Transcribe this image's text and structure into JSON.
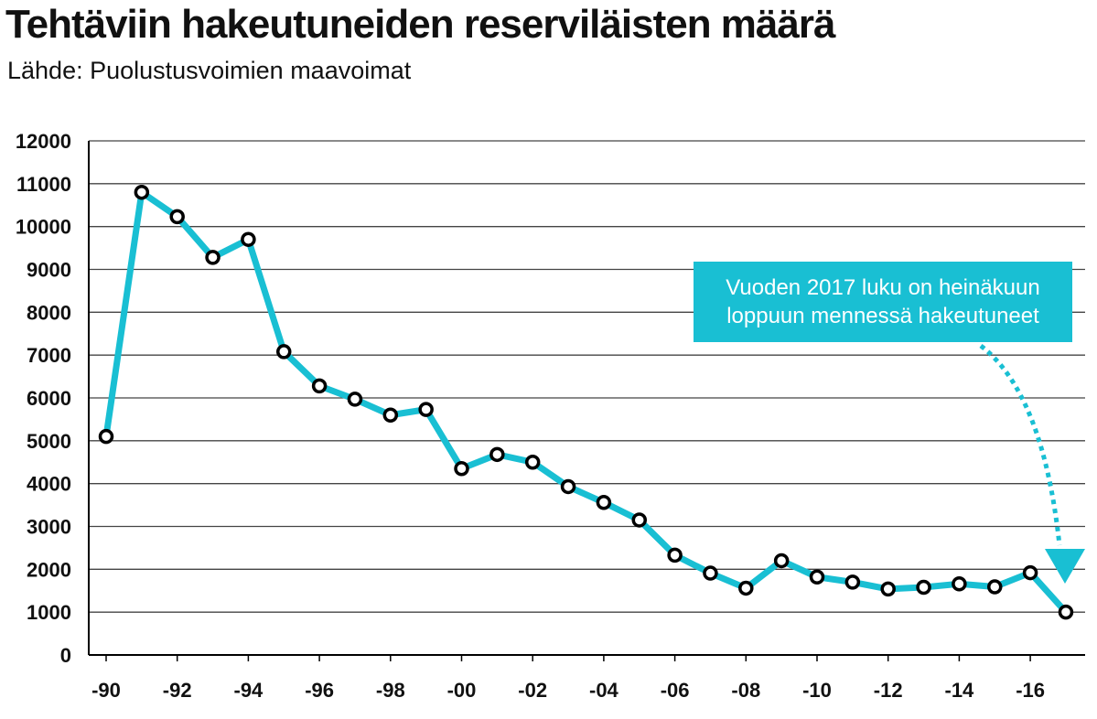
{
  "chart_data": {
    "type": "line",
    "title": "Tehtäviin hakeutuneiden reserviläisten määrä",
    "subtitle": "Lähde: Puolustusvoimien maavoimat",
    "x": [
      1990,
      1991,
      1992,
      1993,
      1994,
      1995,
      1996,
      1997,
      1998,
      1999,
      2000,
      2001,
      2002,
      2003,
      2004,
      2005,
      2006,
      2007,
      2008,
      2009,
      2010,
      2011,
      2012,
      2013,
      2014,
      2015,
      2016,
      2017
    ],
    "series": [
      {
        "values": [
          5100,
          10800,
          10230,
          9280,
          9700,
          7080,
          6280,
          5970,
          5600,
          5730,
          4350,
          4680,
          4500,
          3930,
          3560,
          3150,
          2330,
          1910,
          1560,
          2200,
          1820,
          1700,
          1540,
          1580,
          1660,
          1590,
          1920,
          1000
        ]
      }
    ],
    "xticks": [
      {
        "x": 1990,
        "label": "-90"
      },
      {
        "x": 1992,
        "label": "-92"
      },
      {
        "x": 1994,
        "label": "-94"
      },
      {
        "x": 1996,
        "label": "-96"
      },
      {
        "x": 1998,
        "label": "-98"
      },
      {
        "x": 2000,
        "label": "-00"
      },
      {
        "x": 2002,
        "label": "-02"
      },
      {
        "x": 2004,
        "label": "-04"
      },
      {
        "x": 2006,
        "label": "-06"
      },
      {
        "x": 2008,
        "label": "-08"
      },
      {
        "x": 2010,
        "label": "-10"
      },
      {
        "x": 2012,
        "label": "-12"
      },
      {
        "x": 2014,
        "label": "-14"
      },
      {
        "x": 2016,
        "label": "-16"
      }
    ],
    "yticks": [
      0,
      1000,
      2000,
      3000,
      4000,
      5000,
      6000,
      7000,
      8000,
      9000,
      10000,
      11000,
      12000
    ],
    "ylim": [
      0,
      12000
    ],
    "grid": true,
    "annotation": {
      "text": "Vuoden 2017 luku on heinäkuun\nloppuun mennessä hakeutuneet",
      "points_to": 2017
    },
    "colors": {
      "line": "#19bfd3",
      "marker_fill": "#ffffff",
      "marker_stroke": "#000000",
      "grid": "#444444",
      "annotation_bg": "#19bfd3"
    }
  }
}
